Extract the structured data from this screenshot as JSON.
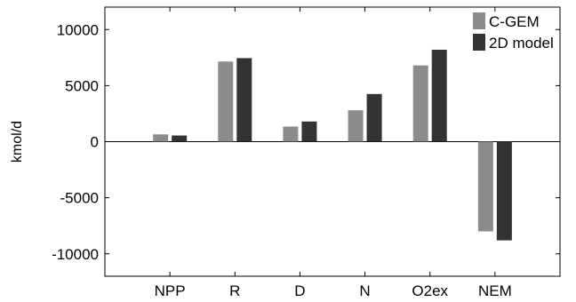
{
  "chart_data": {
    "type": "bar",
    "title": "",
    "xlabel": "",
    "ylabel": "kmol/d",
    "categories": [
      "NPP",
      "R",
      "D",
      "N",
      "O2ex",
      "NEM"
    ],
    "series": [
      {
        "name": "C-GEM",
        "color": "#8c8c8c",
        "values": [
          650,
          7150,
          1350,
          2800,
          6800,
          -8000
        ]
      },
      {
        "name": "2D model",
        "color": "#333333",
        "values": [
          550,
          7450,
          1800,
          4250,
          8200,
          -8800
        ]
      }
    ],
    "ylim": [
      -12000,
      12000
    ],
    "yticks": [
      10000,
      5000,
      0,
      -5000,
      -10000
    ],
    "ytick_labels": [
      "10000",
      "5000",
      "0",
      "-5000",
      "-10000"
    ],
    "grid": false,
    "legend_position": "top-right"
  }
}
